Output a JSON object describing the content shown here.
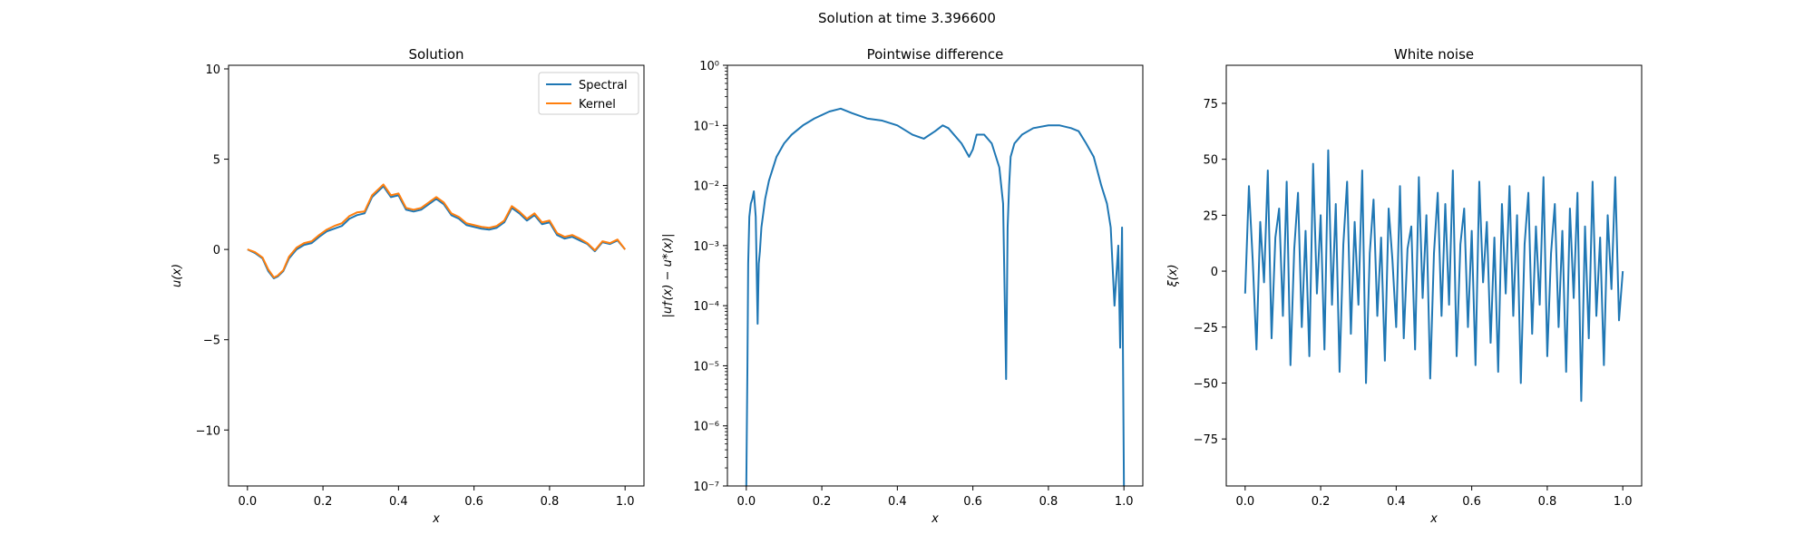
{
  "figure": {
    "suptitle": "Solution at time 3.396600"
  },
  "colors": {
    "spectral": "#1f77b4",
    "kernel": "#ff7f0e",
    "noise": "#1f77b4",
    "difference": "#1f77b4"
  },
  "chart_data": [
    {
      "type": "line",
      "title": "Solution",
      "xlabel": "x",
      "ylabel": "u(x)",
      "xlim": [
        -0.05,
        1.05
      ],
      "ylim": [
        -13.1,
        10.2
      ],
      "xticks": [
        0.0,
        0.2,
        0.4,
        0.6,
        0.8,
        1.0
      ],
      "xtick_labels": [
        "0.0",
        "0.2",
        "0.4",
        "0.6",
        "0.8",
        "1.0"
      ],
      "yticks": [
        10,
        5,
        0,
        -5,
        -10
      ],
      "ytick_labels": [
        "10",
        "5",
        "0",
        "−5",
        "−10"
      ],
      "legend": {
        "position": "top-right",
        "entries": [
          "Spectral",
          "Kernel"
        ]
      },
      "series": [
        {
          "name": "Spectral",
          "x": [
            0.0,
            0.02,
            0.04,
            0.055,
            0.07,
            0.08,
            0.095,
            0.11,
            0.13,
            0.15,
            0.17,
            0.19,
            0.21,
            0.23,
            0.25,
            0.27,
            0.29,
            0.31,
            0.33,
            0.35,
            0.36,
            0.38,
            0.4,
            0.42,
            0.44,
            0.46,
            0.48,
            0.5,
            0.52,
            0.54,
            0.56,
            0.58,
            0.6,
            0.62,
            0.64,
            0.66,
            0.68,
            0.7,
            0.72,
            0.74,
            0.76,
            0.78,
            0.8,
            0.82,
            0.84,
            0.86,
            0.88,
            0.9,
            0.92,
            0.94,
            0.96,
            0.98,
            1.0
          ],
          "y": [
            0.0,
            -0.2,
            -0.5,
            -1.2,
            -1.6,
            -1.5,
            -1.2,
            -0.5,
            0.0,
            0.25,
            0.35,
            0.7,
            1.0,
            1.15,
            1.3,
            1.7,
            1.9,
            2.0,
            2.9,
            3.3,
            3.5,
            2.9,
            3.0,
            2.2,
            2.1,
            2.2,
            2.5,
            2.8,
            2.5,
            1.9,
            1.7,
            1.35,
            1.25,
            1.15,
            1.1,
            1.2,
            1.5,
            2.3,
            2.0,
            1.6,
            1.9,
            1.4,
            1.5,
            0.8,
            0.6,
            0.7,
            0.5,
            0.3,
            -0.1,
            0.4,
            0.3,
            0.5,
            0.0
          ]
        },
        {
          "name": "Kernel",
          "x": [
            0.0,
            0.02,
            0.04,
            0.055,
            0.07,
            0.08,
            0.095,
            0.11,
            0.13,
            0.15,
            0.17,
            0.19,
            0.21,
            0.23,
            0.25,
            0.27,
            0.29,
            0.31,
            0.33,
            0.35,
            0.36,
            0.38,
            0.4,
            0.42,
            0.44,
            0.46,
            0.48,
            0.5,
            0.52,
            0.54,
            0.56,
            0.58,
            0.6,
            0.62,
            0.64,
            0.66,
            0.68,
            0.7,
            0.72,
            0.74,
            0.76,
            0.78,
            0.8,
            0.82,
            0.84,
            0.86,
            0.88,
            0.9,
            0.92,
            0.94,
            0.96,
            0.98,
            1.0
          ],
          "y": [
            0.0,
            -0.15,
            -0.45,
            -1.1,
            -1.55,
            -1.45,
            -1.15,
            -0.4,
            0.1,
            0.35,
            0.45,
            0.8,
            1.1,
            1.3,
            1.45,
            1.85,
            2.05,
            2.1,
            3.0,
            3.4,
            3.6,
            3.0,
            3.1,
            2.3,
            2.2,
            2.3,
            2.6,
            2.9,
            2.6,
            2.0,
            1.8,
            1.45,
            1.35,
            1.25,
            1.2,
            1.3,
            1.6,
            2.4,
            2.1,
            1.7,
            2.0,
            1.5,
            1.6,
            0.9,
            0.7,
            0.8,
            0.6,
            0.35,
            -0.05,
            0.45,
            0.35,
            0.55,
            0.0
          ]
        }
      ]
    },
    {
      "type": "line",
      "title": "Pointwise difference",
      "xlabel": "x",
      "ylabel": "|u†(x) − u*(x)|",
      "yscale": "log",
      "xlim": [
        -0.05,
        1.05
      ],
      "ylim_exp": [
        -7,
        0
      ],
      "xticks": [
        0.0,
        0.2,
        0.4,
        0.6,
        0.8,
        1.0
      ],
      "xtick_labels": [
        "0.0",
        "0.2",
        "0.4",
        "0.6",
        "0.8",
        "1.0"
      ],
      "ytick_exps": [
        0,
        -1,
        -2,
        -3,
        -4,
        -5,
        -6,
        -7
      ],
      "ytick_labels": [
        "10⁰",
        "10⁻¹",
        "10⁻²",
        "10⁻³",
        "10⁻⁴",
        "10⁻⁵",
        "10⁻⁶",
        "10⁻⁷"
      ],
      "series": [
        {
          "x": [
            0.0,
            0.003,
            0.005,
            0.008,
            0.012,
            0.016,
            0.02,
            0.025,
            0.03,
            0.033,
            0.036,
            0.04,
            0.05,
            0.06,
            0.08,
            0.1,
            0.12,
            0.15,
            0.18,
            0.22,
            0.25,
            0.28,
            0.32,
            0.36,
            0.4,
            0.44,
            0.47,
            0.5,
            0.52,
            0.535,
            0.55,
            0.57,
            0.59,
            0.6,
            0.61,
            0.63,
            0.65,
            0.67,
            0.68,
            0.688,
            0.692,
            0.696,
            0.7,
            0.71,
            0.73,
            0.76,
            0.8,
            0.83,
            0.86,
            0.88,
            0.9,
            0.92,
            0.94,
            0.955,
            0.965,
            0.975,
            0.985,
            0.99,
            0.995,
            1.0
          ],
          "y": [
            1e-07,
            1e-05,
            0.0005,
            0.003,
            0.005,
            0.006,
            0.008,
            0.003,
            5e-05,
            0.0005,
            0.0008,
            0.002,
            0.006,
            0.012,
            0.03,
            0.05,
            0.07,
            0.1,
            0.13,
            0.17,
            0.19,
            0.16,
            0.13,
            0.12,
            0.1,
            0.07,
            0.06,
            0.08,
            0.1,
            0.09,
            0.07,
            0.05,
            0.03,
            0.04,
            0.07,
            0.07,
            0.05,
            0.02,
            0.005,
            6e-06,
            0.002,
            0.01,
            0.03,
            0.05,
            0.07,
            0.09,
            0.1,
            0.1,
            0.09,
            0.08,
            0.05,
            0.03,
            0.01,
            0.005,
            0.002,
            0.0001,
            0.001,
            2e-05,
            0.002,
            1e-07
          ]
        }
      ]
    },
    {
      "type": "line",
      "title": "White noise",
      "xlabel": "x",
      "ylabel": "ξ(x)",
      "xlim": [
        -0.05,
        1.05
      ],
      "ylim": [
        -96,
        92
      ],
      "xticks": [
        0.0,
        0.2,
        0.4,
        0.6,
        0.8,
        1.0
      ],
      "xtick_labels": [
        "0.0",
        "0.2",
        "0.4",
        "0.6",
        "0.8",
        "1.0"
      ],
      "yticks": [
        75,
        50,
        25,
        0,
        -25,
        -50,
        -75
      ],
      "ytick_labels": [
        "75",
        "50",
        "25",
        "0",
        "−25",
        "−50",
        "−75"
      ],
      "series": [
        {
          "x": [
            0.0,
            0.01,
            0.02,
            0.03,
            0.04,
            0.05,
            0.06,
            0.07,
            0.08,
            0.09,
            0.1,
            0.11,
            0.12,
            0.13,
            0.14,
            0.15,
            0.16,
            0.17,
            0.18,
            0.19,
            0.2,
            0.21,
            0.22,
            0.23,
            0.24,
            0.25,
            0.26,
            0.27,
            0.28,
            0.29,
            0.3,
            0.31,
            0.32,
            0.33,
            0.34,
            0.35,
            0.36,
            0.37,
            0.38,
            0.39,
            0.4,
            0.41,
            0.42,
            0.43,
            0.44,
            0.45,
            0.46,
            0.47,
            0.48,
            0.49,
            0.5,
            0.51,
            0.52,
            0.53,
            0.54,
            0.55,
            0.56,
            0.57,
            0.58,
            0.59,
            0.6,
            0.61,
            0.62,
            0.63,
            0.64,
            0.65,
            0.66,
            0.67,
            0.68,
            0.69,
            0.7,
            0.71,
            0.72,
            0.73,
            0.74,
            0.75,
            0.76,
            0.77,
            0.78,
            0.79,
            0.8,
            0.81,
            0.82,
            0.83,
            0.84,
            0.85,
            0.86,
            0.87,
            0.88,
            0.89,
            0.9,
            0.91,
            0.92,
            0.93,
            0.94,
            0.95,
            0.96,
            0.97,
            0.98,
            0.99,
            1.0
          ],
          "y": [
            -10,
            38,
            5,
            -35,
            22,
            -5,
            45,
            -30,
            15,
            28,
            -20,
            40,
            -42,
            10,
            35,
            -25,
            18,
            -38,
            48,
            -10,
            25,
            -35,
            54,
            -15,
            30,
            -45,
            12,
            40,
            -28,
            22,
            -15,
            45,
            -50,
            8,
            32,
            -20,
            15,
            -40,
            28,
            5,
            -25,
            38,
            -30,
            10,
            20,
            -35,
            42,
            -12,
            25,
            -48,
            8,
            35,
            -20,
            30,
            -15,
            45,
            -38,
            12,
            28,
            -25,
            18,
            -42,
            40,
            -5,
            22,
            -32,
            15,
            -45,
            30,
            -10,
            38,
            -20,
            25,
            -50,
            12,
            35,
            -28,
            20,
            -15,
            42,
            -38,
            8,
            30,
            -25,
            18,
            -45,
            28,
            -12,
            35,
            -58,
            20,
            -30,
            40,
            -20,
            15,
            -42,
            25,
            -8,
            42,
            -22,
            0
          ]
        }
      ]
    }
  ]
}
